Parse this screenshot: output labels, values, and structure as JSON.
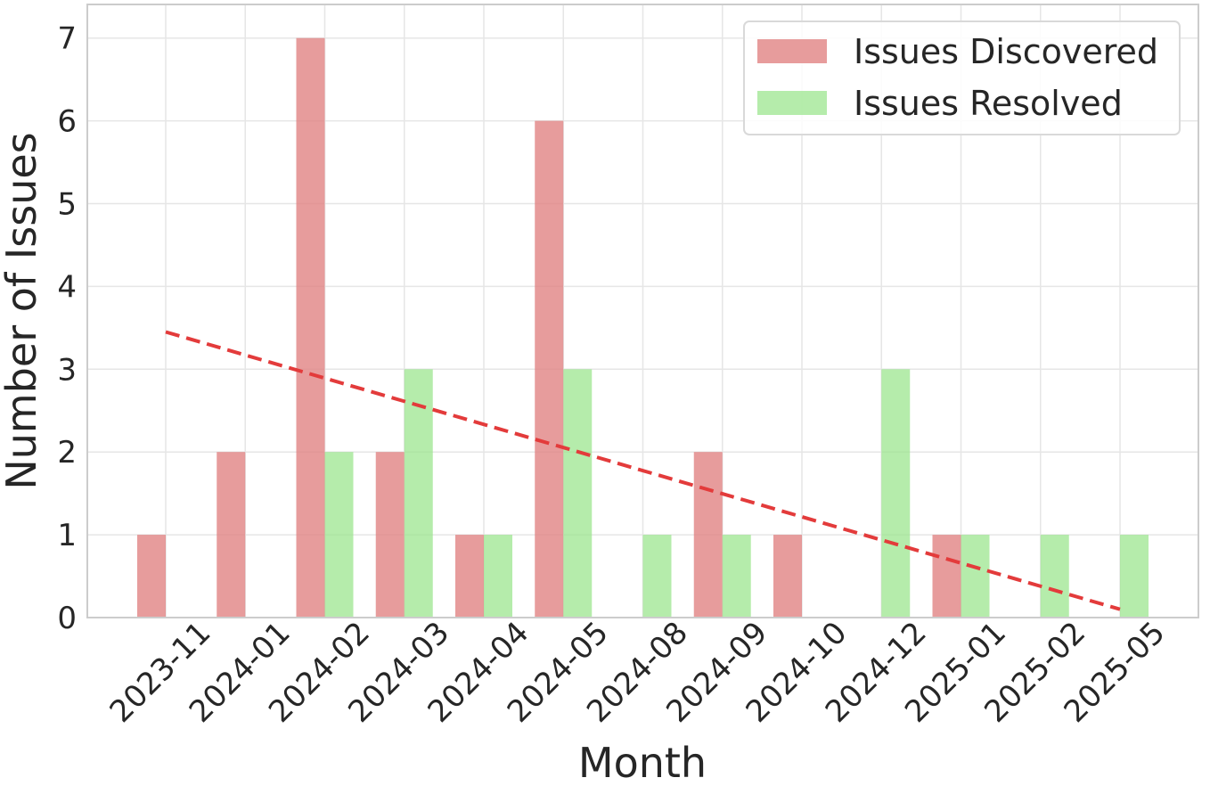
{
  "chart_data": {
    "type": "bar",
    "xlabel": "Month",
    "ylabel": "Number of Issues",
    "ylim": [
      0,
      7.3
    ],
    "yticks": [
      0,
      1,
      2,
      3,
      4,
      5,
      6,
      7
    ],
    "grid": true,
    "legend_position": "top-right",
    "categories": [
      "2023-11",
      "2024-01",
      "2024-02",
      "2024-03",
      "2024-04",
      "2024-05",
      "2024-08",
      "2024-09",
      "2024-10",
      "2024-12",
      "2025-01",
      "2025-02",
      "2025-05"
    ],
    "series": [
      {
        "name": "Issues Discovered",
        "color": "#e08080",
        "values": [
          1,
          2,
          7,
          2,
          1,
          6,
          0,
          2,
          1,
          0,
          1,
          0,
          0
        ]
      },
      {
        "name": "Issues Resolved",
        "color": "#98e58a",
        "values": [
          0,
          0,
          2,
          3,
          1,
          3,
          1,
          1,
          0,
          3,
          1,
          1,
          1
        ]
      }
    ],
    "trend_line": {
      "color": "#e33b3b",
      "style": "dashed",
      "start": {
        "x": "2023-11",
        "y": 3.45
      },
      "end": {
        "x": "2025-05",
        "y": 0.1
      }
    }
  }
}
